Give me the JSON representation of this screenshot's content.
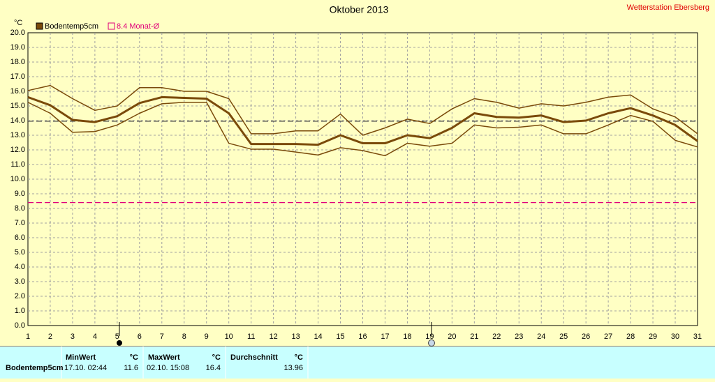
{
  "chart_data": {
    "type": "line",
    "title": "Oktober 2013",
    "station": "Wetterstation Ebersberg",
    "y_unit": "°C",
    "x": [
      1,
      2,
      3,
      4,
      5,
      6,
      7,
      8,
      9,
      10,
      11,
      12,
      13,
      14,
      15,
      16,
      17,
      18,
      19,
      20,
      21,
      22,
      23,
      24,
      25,
      26,
      27,
      28,
      29,
      30,
      31
    ],
    "xlim": [
      1,
      31
    ],
    "ylim": [
      0,
      20
    ],
    "yticks": [
      {
        "value": 0,
        "label": "0.0"
      },
      {
        "value": 1,
        "label": "1.0"
      },
      {
        "value": 2,
        "label": "2.0"
      },
      {
        "value": 3,
        "label": "3.0"
      },
      {
        "value": 4,
        "label": "4.0"
      },
      {
        "value": 5,
        "label": "5.0"
      },
      {
        "value": 6,
        "label": "6.0"
      },
      {
        "value": 7,
        "label": "7.0"
      },
      {
        "value": 8,
        "label": "8.0"
      },
      {
        "value": 9,
        "label": "9.0"
      },
      {
        "value": 10,
        "label": "10.0"
      },
      {
        "value": 11,
        "label": "11.0"
      },
      {
        "value": 12,
        "label": "12.0"
      },
      {
        "value": 13,
        "label": "13.0"
      },
      {
        "value": 14,
        "label": "14.0"
      },
      {
        "value": 15,
        "label": "15.0"
      },
      {
        "value": 16,
        "label": "16.0"
      },
      {
        "value": 17,
        "label": "17.0"
      },
      {
        "value": 18,
        "label": "18.0"
      },
      {
        "value": 19,
        "label": "19.0"
      },
      {
        "value": 20,
        "label": "20.0"
      }
    ],
    "grid": true,
    "series": [
      {
        "name": "Bodentemp5cm",
        "color": "#7a4a0a",
        "width": 3,
        "values": [
          15.6,
          15.05,
          14.05,
          13.9,
          14.3,
          15.2,
          15.6,
          15.55,
          15.5,
          14.5,
          12.4,
          12.4,
          12.4,
          12.35,
          13.0,
          12.45,
          12.45,
          13.0,
          12.8,
          13.5,
          14.5,
          14.25,
          14.2,
          14.35,
          13.9,
          14.0,
          14.5,
          14.85,
          14.35,
          13.7,
          12.6
        ]
      },
      {
        "color": "#7a4a0a",
        "width": 1.5,
        "values": [
          16.05,
          16.4,
          15.5,
          14.7,
          15.0,
          16.25,
          16.25,
          16.0,
          16.0,
          15.5,
          13.1,
          13.1,
          13.3,
          13.3,
          14.45,
          13.0,
          13.5,
          14.1,
          13.8,
          14.8,
          15.5,
          15.25,
          14.85,
          15.15,
          15.0,
          15.25,
          15.6,
          15.75,
          14.8,
          14.25,
          13.1
        ]
      },
      {
        "color": "#7a4a0a",
        "width": 1.5,
        "values": [
          15.25,
          14.5,
          13.2,
          13.25,
          13.7,
          14.5,
          15.15,
          15.25,
          15.25,
          12.45,
          12.05,
          12.05,
          11.85,
          11.65,
          12.15,
          11.95,
          11.6,
          12.45,
          12.25,
          12.45,
          13.7,
          13.5,
          13.55,
          13.7,
          13.1,
          13.1,
          13.7,
          14.35,
          13.95,
          12.65,
          12.2
        ]
      }
    ],
    "reference_lines": [
      {
        "label": "8.4 Monat-Ø",
        "value": 8.4,
        "color": "#e0007a"
      },
      {
        "value": 13.96,
        "color": "#404040"
      }
    ]
  },
  "table": {
    "headers": [
      "MinWert",
      "°C",
      "MaxWert",
      "°C",
      "Durchschnitt",
      "°C"
    ],
    "rows": [
      [
        "Bodentemp5cm",
        "17.10.  02:44",
        "11.6",
        "02.10.  15:08",
        "16.4",
        "13.96"
      ]
    ]
  }
}
